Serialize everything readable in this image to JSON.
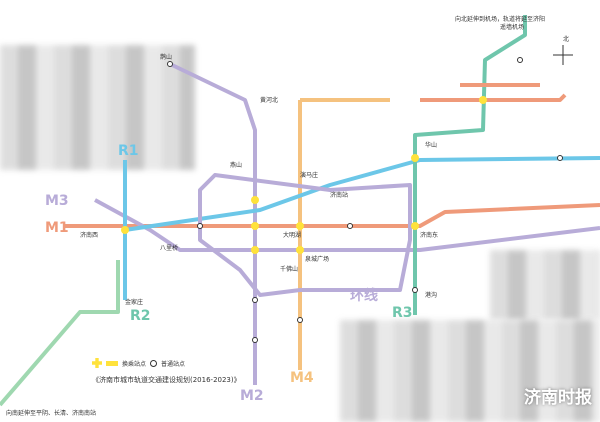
{
  "lines": [
    {
      "id": "R1",
      "color": "#6cc7e8"
    },
    {
      "id": "R2",
      "color": "#9fd8b0"
    },
    {
      "id": "R3",
      "color": "#6fc6ac"
    },
    {
      "id": "M1",
      "color": "#ef9a7a"
    },
    {
      "id": "M2",
      "color": "#b8acd8"
    },
    {
      "id": "M3",
      "color": "#b8acd8"
    },
    {
      "id": "M4",
      "color": "#f5c27f"
    },
    {
      "id": "环线",
      "color": "#b8acd8"
    }
  ],
  "stations": [
    "鹊山",
    "黄河北",
    "济南西",
    "大明湖",
    "泉城广场",
    "千佛山",
    "济南东",
    "遥墙机场",
    "燕山",
    "八里桥",
    "济南站",
    "演马庄",
    "华山",
    "港沟",
    "金家庄"
  ],
  "notes": {
    "top": "向北延伸到机场，轨道将延至济阳",
    "bottom": "向南延伸至平阴、长清、济南南站"
  },
  "legend": {
    "transfer": "换乘站点",
    "normal": "普通站点",
    "transfer_color": "#ffe23c"
  },
  "title": "《济南市城市轨道交通建设规划(2016-2023)》",
  "watermark": "济南时报",
  "compass": "北"
}
